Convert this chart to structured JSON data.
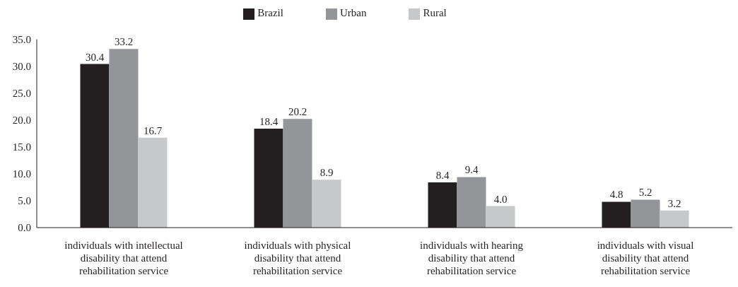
{
  "chart_data": {
    "type": "bar",
    "categories": [
      "individuals with intellectual disability that attend rehabilitation service",
      "individuals with physical disability that attend rehabilitation service",
      "individuals with hearing disability that attend rehabilitation service",
      "individuals with visual disability that attend rehabilitation service"
    ],
    "series": [
      {
        "name": "Brazil",
        "color": "#231f20",
        "values": [
          30.4,
          18.4,
          8.4,
          4.8
        ],
        "value_labels": [
          "30.4",
          "18.4",
          "8.4",
          "4.8"
        ]
      },
      {
        "name": "Urban",
        "color": "#939598",
        "values": [
          33.2,
          20.2,
          9.4,
          5.2
        ],
        "value_labels": [
          "33.2",
          "20.2",
          "9.4",
          "5.2"
        ]
      },
      {
        "name": "Rural",
        "color": "#c7c8ca",
        "values": [
          16.7,
          8.9,
          4.0,
          3.2
        ],
        "value_labels": [
          "16.7",
          "8.9",
          "4.0",
          "3.2"
        ]
      }
    ],
    "ylim": [
      0,
      35
    ],
    "yticks": [
      {
        "value": 0,
        "label": "0.0"
      },
      {
        "value": 5,
        "label": "5.0"
      },
      {
        "value": 10,
        "label": "10.0"
      },
      {
        "value": 15,
        "label": "15.0"
      },
      {
        "value": 20,
        "label": "20.0"
      },
      {
        "value": 25,
        "label": "25.0"
      },
      {
        "value": 30,
        "label": "30.0"
      },
      {
        "value": 35,
        "label": "35.0"
      }
    ],
    "grid": false,
    "legend": "top"
  }
}
